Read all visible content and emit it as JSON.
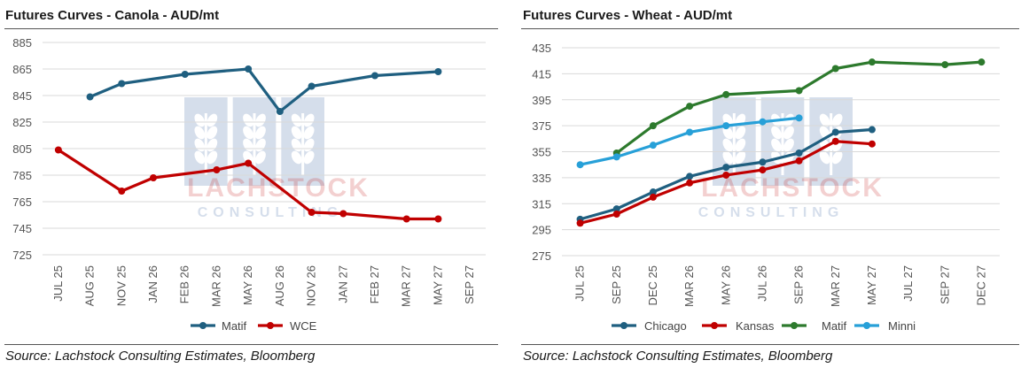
{
  "charts": [
    {
      "panel_title": "Futures Curves - Canola - AUD/mt",
      "source": "Source: Lachstock Consulting Estimates, Bloomberg",
      "watermark": {
        "name": "LACHSTOCK",
        "sub": "CONSULTING"
      }
    },
    {
      "panel_title": "Futures Curves - Wheat - AUD/mt",
      "source": "Source: Lachstock Consulting Estimates, Bloomberg",
      "watermark": {
        "name": "LACHSTOCK",
        "sub": "CONSULTING"
      }
    }
  ],
  "chart_data": [
    {
      "type": "line",
      "title": "Futures Curves - Canola - AUD/mt",
      "categories": [
        "JUL 25",
        "AUG 25",
        "NOV 25",
        "JAN 26",
        "FEB 26",
        "MAR 26",
        "MAY 26",
        "AUG 26",
        "NOV 26",
        "JAN 27",
        "FEB 27",
        "MAR 27",
        "MAY 27",
        "SEP 27"
      ],
      "ylim": [
        725,
        885
      ],
      "yticks": [
        725,
        745,
        765,
        785,
        805,
        825,
        845,
        865,
        885
      ],
      "grid": true,
      "legend_position": "bottom",
      "series": [
        {
          "name": "Matif",
          "color": "#1f5f80",
          "values": [
            null,
            844,
            854,
            null,
            861,
            null,
            865,
            833,
            852,
            null,
            860,
            null,
            863,
            null
          ]
        },
        {
          "name": "WCE",
          "color": "#c00000",
          "values": [
            804,
            null,
            773,
            783,
            null,
            789,
            794,
            null,
            757,
            756,
            null,
            752,
            752,
            null
          ]
        }
      ]
    },
    {
      "type": "line",
      "title": "Futures Curves - Wheat - AUD/mt",
      "categories": [
        "JUL 25",
        "SEP 25",
        "DEC 25",
        "MAR 26",
        "MAY 26",
        "JUL 26",
        "SEP 26",
        "MAR 27",
        "MAY 27",
        "JUL 27",
        "SEP 27",
        "DEC 27"
      ],
      "ylim": [
        275,
        435
      ],
      "yticks": [
        275,
        295,
        315,
        335,
        355,
        375,
        395,
        415,
        435
      ],
      "grid": true,
      "legend_position": "bottom",
      "series": [
        {
          "name": "Chicago",
          "color": "#1f5f80",
          "values": [
            303,
            311,
            324,
            336,
            343,
            347,
            354,
            370,
            372,
            null,
            null,
            null
          ]
        },
        {
          "name": "Kansas",
          "color": "#c00000",
          "values": [
            300,
            307,
            320,
            331,
            337,
            341,
            348,
            363,
            361,
            null,
            null,
            null
          ]
        },
        {
          "name": "Matif",
          "color": "#2d7a2d",
          "values": [
            null,
            354,
            375,
            390,
            399,
            null,
            402,
            419,
            424,
            null,
            422,
            424
          ]
        },
        {
          "name": "Minni",
          "color": "#27a0d8",
          "values": [
            345,
            351,
            360,
            370,
            375,
            378,
            381,
            null,
            null,
            null,
            null,
            null
          ]
        }
      ]
    }
  ]
}
